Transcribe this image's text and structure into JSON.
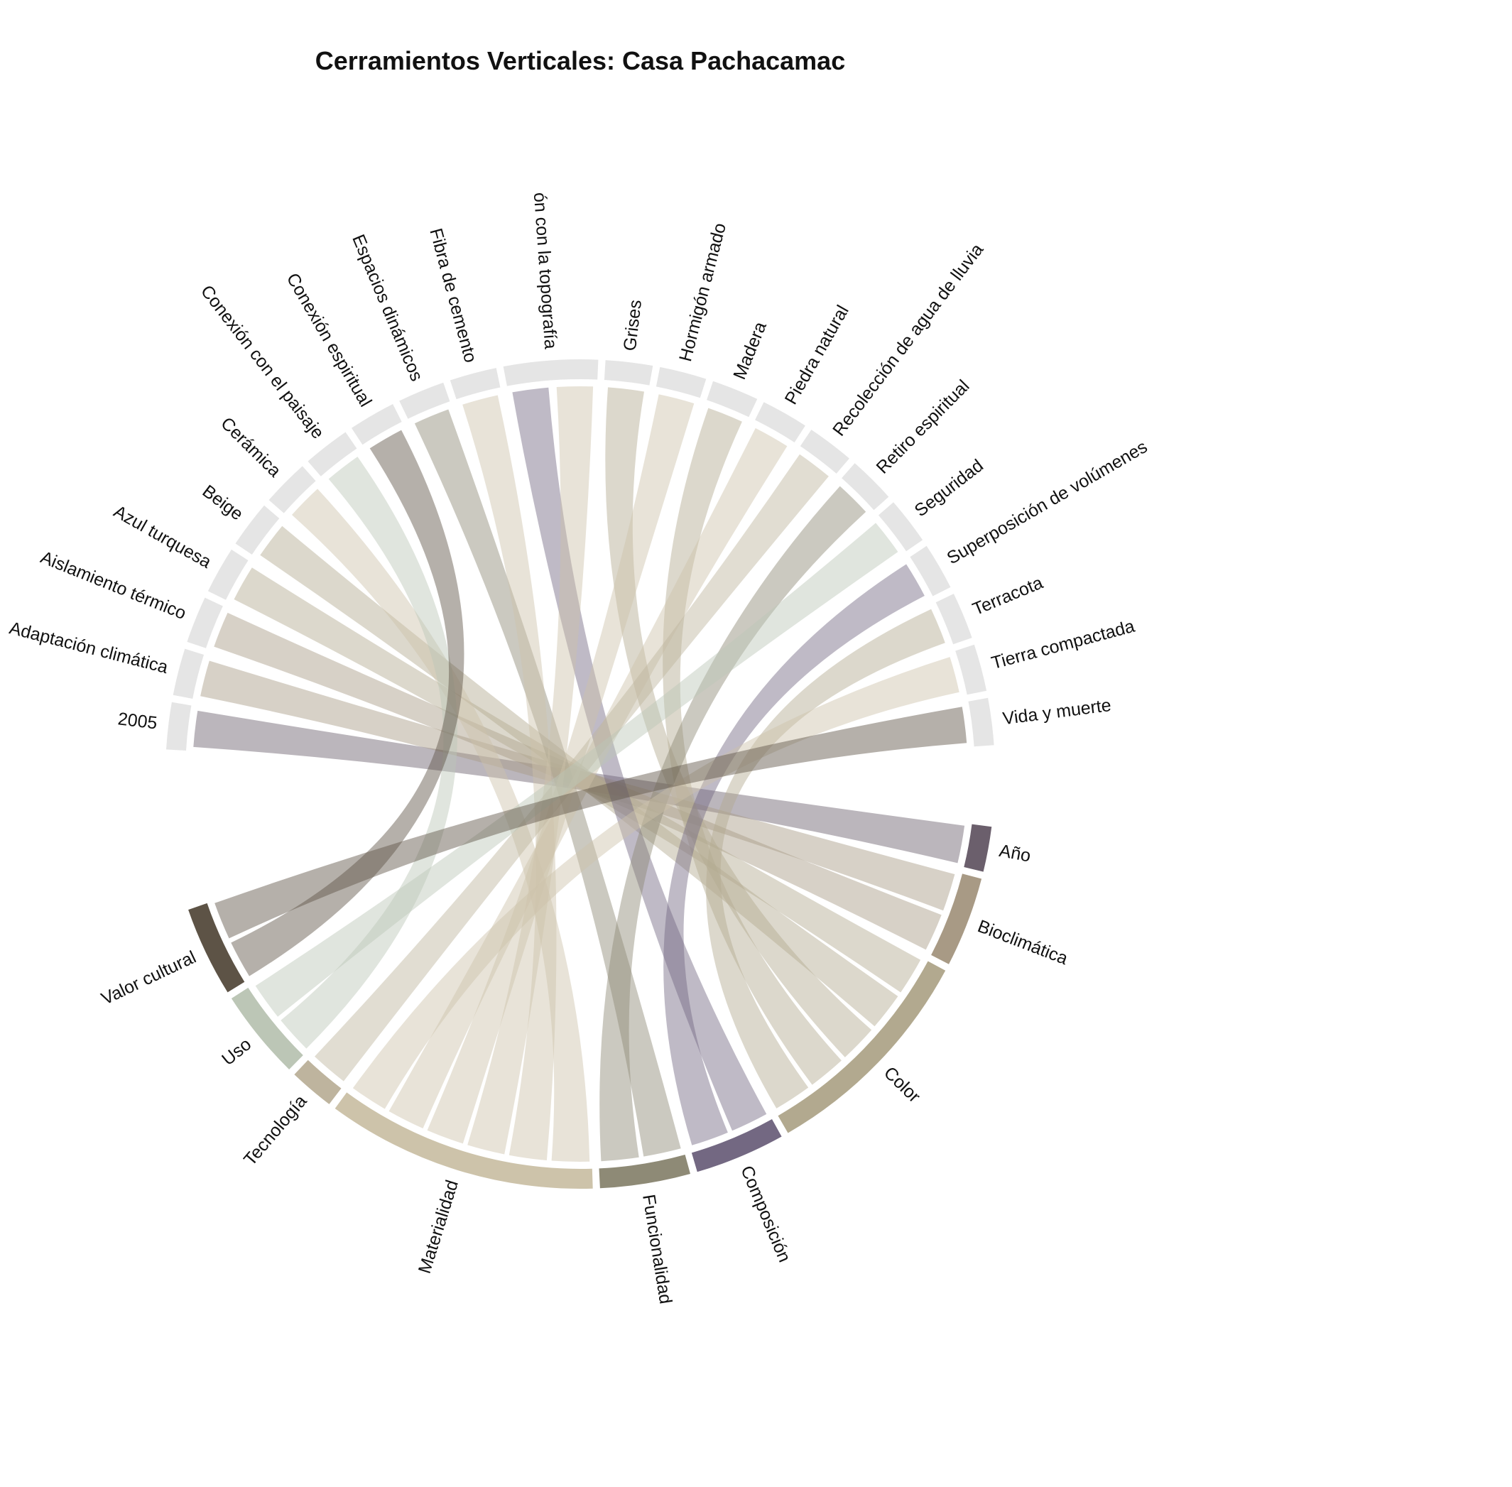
{
  "chart_data": {
    "type": "chord",
    "title": "Cerramientos Verticales: Casa Pachacamac",
    "top_nodes": [
      "2005",
      "Adaptación climática",
      "Aislamiento térmico",
      "Azul turquesa",
      "Beige",
      "Cerámica",
      "Conexión con el paisaje",
      "Conexión espiritual",
      "Espacios dinámicos",
      "Fibra de cemento",
      "Integración con la topografía",
      "Grises",
      "Hormigón armado",
      "Madera",
      "Piedra natural",
      "Recolección de agua de lluvia",
      "Retiro espiritual",
      "Seguridad",
      "Superposición de volúmenes",
      "Terracota",
      "Tierra compactada",
      "Vida y muerte"
    ],
    "top_node_label_display": {
      "Integración con la topografía": "ón con la topografía"
    },
    "top_node_weights": [
      1,
      1,
      1,
      1,
      1,
      1,
      1,
      1,
      1,
      1,
      2,
      1,
      1,
      1,
      1,
      1,
      1,
      1,
      1,
      1,
      1,
      1
    ],
    "categories": [
      {
        "name": "Año",
        "color": "#6b5f6c"
      },
      {
        "name": "Bioclimática",
        "color": "#a89a85"
      },
      {
        "name": "Color",
        "color": "#b2a98f"
      },
      {
        "name": "Composición",
        "color": "#736882"
      },
      {
        "name": "Funcionalidad",
        "color": "#8e8a76"
      },
      {
        "name": "Materialidad",
        "color": "#cdc3aa"
      },
      {
        "name": "Tecnología",
        "color": "#beb49e"
      },
      {
        "name": "Uso",
        "color": "#bcc6b6"
      },
      {
        "name": "Valor cultural",
        "color": "#5d5346"
      }
    ],
    "links": [
      {
        "source": "2005",
        "target": "Año",
        "value": 1
      },
      {
        "source": "Adaptación climática",
        "target": "Bioclimática",
        "value": 1
      },
      {
        "source": "Aislamiento térmico",
        "target": "Bioclimática",
        "value": 1
      },
      {
        "source": "Azul turquesa",
        "target": "Color",
        "value": 1
      },
      {
        "source": "Beige",
        "target": "Color",
        "value": 1
      },
      {
        "source": "Cerámica",
        "target": "Materialidad",
        "value": 1
      },
      {
        "source": "Conexión con el paisaje",
        "target": "Uso",
        "value": 1
      },
      {
        "source": "Conexión espiritual",
        "target": "Valor cultural",
        "value": 1
      },
      {
        "source": "Espacios dinámicos",
        "target": "Funcionalidad",
        "value": 1
      },
      {
        "source": "Fibra de cemento",
        "target": "Materialidad",
        "value": 1
      },
      {
        "source": "Integración con la topografía",
        "target": "Composición",
        "value": 1
      },
      {
        "source": "Integración con la topografía",
        "target": "Materialidad",
        "value": 1
      },
      {
        "source": "Grises",
        "target": "Color",
        "value": 1
      },
      {
        "source": "Hormigón armado",
        "target": "Materialidad",
        "value": 1
      },
      {
        "source": "Madera",
        "target": "Color",
        "value": 1
      },
      {
        "source": "Piedra natural",
        "target": "Materialidad",
        "value": 1
      },
      {
        "source": "Recolección de agua de lluvia",
        "target": "Tecnología",
        "value": 1
      },
      {
        "source": "Retiro espiritual",
        "target": "Funcionalidad",
        "value": 1
      },
      {
        "source": "Seguridad",
        "target": "Uso",
        "value": 1
      },
      {
        "source": "Superposición de volúmenes",
        "target": "Composición",
        "value": 1
      },
      {
        "source": "Terracota",
        "target": "Color",
        "value": 1
      },
      {
        "source": "Tierra compactada",
        "target": "Materialidad",
        "value": 1
      },
      {
        "source": "Vida y muerte",
        "target": "Valor cultural",
        "value": 1
      }
    ],
    "top_node_color": "#e5e5e5"
  }
}
